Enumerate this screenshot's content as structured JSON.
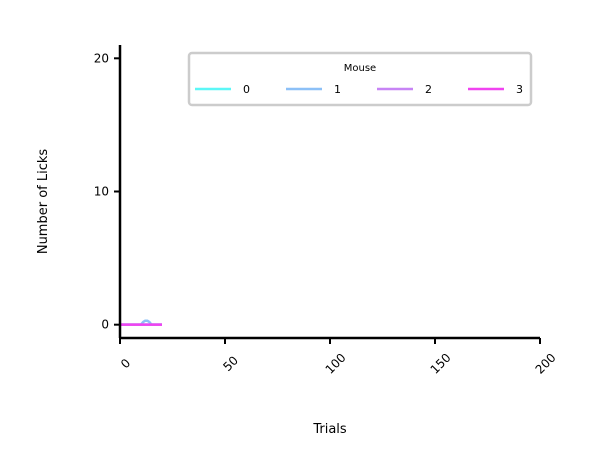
{
  "chart_data": {
    "type": "line",
    "title": "",
    "xlabel": "Trials",
    "ylabel": "Number of Licks",
    "xlim": [
      0,
      200
    ],
    "ylim": [
      -1,
      21
    ],
    "xticks": [
      0,
      50,
      100,
      150,
      200
    ],
    "xtick_labels": [
      "0",
      "50",
      "100",
      "150",
      "200"
    ],
    "yticks": [
      0,
      10,
      20
    ],
    "ytick_labels": [
      "0",
      "10",
      "20"
    ],
    "grid": false,
    "legend": {
      "title": "Mouse",
      "placement": "top-right",
      "columns": 4
    },
    "series": [
      {
        "name": "0",
        "color": "#5cf7f7",
        "x": [
          0,
          2,
          4,
          6,
          8,
          10,
          12,
          14,
          16,
          18,
          20
        ],
        "y": [
          0,
          0,
          0,
          0,
          0,
          0,
          0,
          0,
          0,
          0,
          0
        ]
      },
      {
        "name": "1",
        "color": "#8cc0f7",
        "x": [
          0,
          2,
          4,
          6,
          8,
          10,
          11,
          12,
          13,
          14,
          15,
          16,
          18,
          20
        ],
        "y": [
          0,
          0,
          0,
          0,
          0,
          0,
          0.2,
          0.3,
          0.3,
          0.2,
          0,
          0,
          0,
          0
        ]
      },
      {
        "name": "2",
        "color": "#c784f5",
        "x": [
          0,
          2,
          4,
          6,
          8,
          10,
          12,
          14,
          16,
          18,
          20
        ],
        "y": [
          0,
          0,
          0,
          0,
          0,
          0,
          0,
          0,
          0,
          0,
          0
        ]
      },
      {
        "name": "3",
        "color": "#f043f0",
        "x": [
          0,
          2,
          4,
          6,
          8,
          10,
          12,
          14,
          16,
          18,
          20
        ],
        "y": [
          0,
          0,
          0,
          0,
          0,
          0,
          0,
          0,
          0,
          0,
          0
        ]
      }
    ]
  }
}
